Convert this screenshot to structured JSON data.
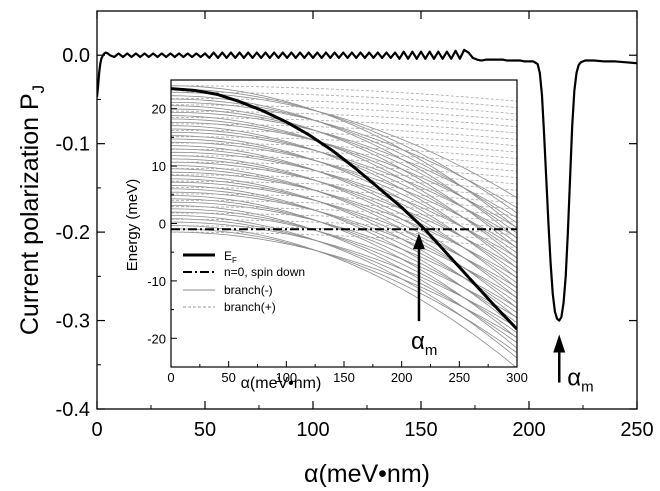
{
  "chart_data": [
    {
      "type": "line",
      "xlabel": "α(meV•nm)",
      "ylabel": "Current polarization P",
      "ylabel_subscript": "J",
      "xlim": [
        0,
        250
      ],
      "ylim": [
        -0.4,
        0.05
      ],
      "xticks": [
        0,
        50,
        100,
        150,
        200,
        250
      ],
      "yticks": [
        0.0,
        -0.1,
        -0.2,
        -0.3,
        -0.4
      ],
      "xtick_labels": [
        "0",
        "50",
        "100",
        "150",
        "200",
        "250"
      ],
      "ytick_labels": [
        "0.0",
        "-0.1",
        "-0.2",
        "-0.3",
        "-0.4"
      ],
      "series": [
        {
          "x": [
            0,
            0.5,
            1,
            1.5,
            2,
            3,
            4,
            5,
            6,
            8,
            10,
            12,
            14,
            16,
            18,
            20,
            22,
            24,
            26,
            28,
            30,
            32,
            34,
            36,
            38,
            40,
            42,
            44,
            46,
            48,
            50,
            52,
            54,
            56,
            58,
            60,
            62,
            64,
            66,
            68,
            70,
            72,
            74,
            76,
            78,
            80,
            82,
            84,
            86,
            88,
            90,
            92,
            94,
            96,
            98,
            100,
            102,
            104,
            106,
            108,
            110,
            112,
            114,
            116,
            118,
            120,
            122,
            124,
            126,
            128,
            130,
            132,
            134,
            136,
            138,
            140,
            142,
            144,
            146,
            148,
            150,
            152,
            154,
            156,
            158,
            160,
            162,
            164,
            166,
            168,
            170,
            172,
            174,
            176,
            178,
            180,
            182,
            184,
            186,
            188,
            190,
            192,
            194,
            196,
            198,
            200,
            202,
            204,
            205,
            206,
            207,
            208,
            209,
            210,
            211,
            212,
            213,
            214,
            215,
            216,
            217,
            218,
            219,
            220,
            221,
            222,
            223,
            224,
            225,
            226,
            228,
            230,
            235,
            240,
            245,
            250
          ],
          "y": [
            -0.047,
            -0.035,
            -0.02,
            -0.01,
            -0.004,
            0.001,
            0.003,
            0.002,
            0.0,
            -0.002,
            0.002,
            -0.002,
            0.002,
            -0.002,
            0.002,
            -0.002,
            0.002,
            -0.002,
            0.002,
            -0.002,
            0.002,
            -0.002,
            0.002,
            -0.002,
            0.002,
            -0.002,
            0.002,
            -0.002,
            0.002,
            -0.002,
            0.002,
            -0.003,
            0.003,
            -0.003,
            0.003,
            -0.003,
            0.003,
            -0.003,
            0.003,
            -0.003,
            0.003,
            -0.003,
            0.003,
            -0.003,
            0.003,
            -0.003,
            0.003,
            -0.003,
            0.003,
            -0.003,
            0.003,
            -0.003,
            0.003,
            -0.003,
            0.003,
            -0.003,
            0.003,
            -0.003,
            0.003,
            -0.003,
            0.003,
            -0.003,
            0.003,
            -0.003,
            0.003,
            -0.003,
            0.003,
            -0.003,
            0.003,
            -0.003,
            0.003,
            -0.003,
            0.003,
            -0.003,
            0.003,
            -0.004,
            0.004,
            -0.004,
            0.004,
            -0.004,
            0.004,
            -0.004,
            0.004,
            -0.004,
            0.004,
            -0.004,
            0.004,
            -0.004,
            0.005,
            -0.004,
            0.006,
            0.003,
            -0.003,
            -0.005,
            -0.006,
            -0.005,
            -0.005,
            -0.005,
            -0.005,
            -0.005,
            -0.006,
            -0.006,
            -0.006,
            -0.006,
            -0.007,
            -0.007,
            -0.007,
            -0.01,
            -0.02,
            -0.045,
            -0.09,
            -0.14,
            -0.19,
            -0.235,
            -0.27,
            -0.29,
            -0.298,
            -0.3,
            -0.296,
            -0.28,
            -0.25,
            -0.2,
            -0.14,
            -0.08,
            -0.04,
            -0.02,
            -0.011,
            -0.008,
            -0.007,
            -0.006,
            -0.006,
            -0.006,
            -0.007,
            -0.007,
            -0.008,
            -0.009
          ]
        }
      ],
      "annotations": [
        {
          "text": "α",
          "subscript": "m",
          "x": 214,
          "y": -0.3
        }
      ]
    },
    {
      "type": "line",
      "xlabel": "α(meV•nm)",
      "ylabel": "Energy (meV)",
      "xlim": [
        0,
        300
      ],
      "ylim": [
        -25,
        25
      ],
      "xticks": [
        0,
        50,
        100,
        150,
        200,
        250,
        300
      ],
      "yticks": [
        20,
        10,
        0,
        -10,
        -20
      ],
      "xtick_labels": [
        "0",
        "50",
        "100",
        "150",
        "200",
        "250",
        "300"
      ],
      "ytick_labels": [
        "20",
        "10",
        "0",
        "-10",
        "-20"
      ],
      "legend": {
        "placement": "bottom-left",
        "entries": [
          {
            "label": "E",
            "subscript": "F",
            "style": "solid-thick"
          },
          {
            "label": "n=0, spin down",
            "style": "dash-dot"
          },
          {
            "label": "branch(-)",
            "style": "solid-thin-gray"
          },
          {
            "label": "branch(+)",
            "style": "dashed-thin-gray"
          }
        ]
      },
      "series": [
        {
          "name": "E",
          "x": [
            0,
            20,
            40,
            60,
            80,
            100,
            120,
            140,
            160,
            180,
            200,
            220,
            240,
            260,
            280,
            300
          ],
          "y": [
            23.5,
            23.2,
            22.5,
            21.2,
            19.6,
            17.7,
            15.4,
            12.7,
            9.6,
            6.2,
            2.8,
            -1.0,
            -5.4,
            -9.8,
            -14.2,
            -18.4
          ]
        },
        {
          "name": "n=0, spin down",
          "x": [
            0,
            300
          ],
          "y": [
            -1.0,
            -1.0
          ]
        }
      ],
      "branch_lines": {
        "minus_count": 45,
        "plus_count": 24,
        "start_energy_range": [
          -1.5,
          24
        ],
        "minus_curvature_per_alpha2": 0.00024,
        "plus_curvature_per_alpha2": 3e-05
      },
      "annotations": [
        {
          "text": "α",
          "subscript": "m",
          "x": 215,
          "y": -17
        }
      ]
    }
  ]
}
